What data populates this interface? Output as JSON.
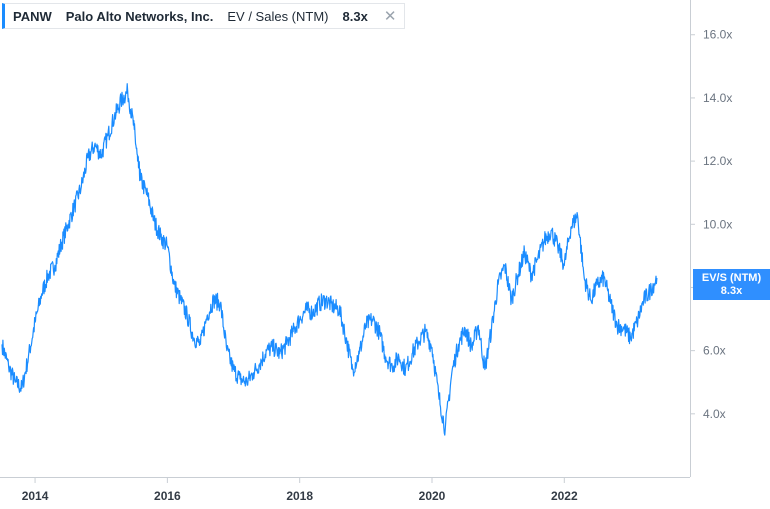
{
  "legend": {
    "ticker": "PANW",
    "company": "Palo Alto Networks, Inc.",
    "metric": "EV / Sales (NTM)",
    "value": "8.3x",
    "close_icon": "close-icon"
  },
  "badge": {
    "label": "EV/S (NTM)",
    "value": "8.3x"
  },
  "colors": {
    "line": "#1a8cff",
    "badge": "#2f8fff",
    "axis": "#c9ced4"
  },
  "chart_data": {
    "type": "line",
    "series": [
      {
        "x": [
          2013.5,
          2013.6,
          2013.7,
          2013.8,
          2013.9,
          2014.0,
          2014.1,
          2014.2,
          2014.3,
          2014.4,
          2014.5,
          2014.6,
          2014.7,
          2014.8,
          2014.9,
          2015.0,
          2015.1,
          2015.2,
          2015.3,
          2015.4,
          2015.5,
          2015.55,
          2015.6,
          2015.7,
          2015.8,
          2015.9,
          2016.0,
          2016.1,
          2016.2,
          2016.3,
          2016.4,
          2016.5,
          2016.6,
          2016.7,
          2016.8,
          2016.9,
          2017.0,
          2017.1,
          2017.2,
          2017.3,
          2017.4,
          2017.5,
          2017.6,
          2017.7,
          2017.8,
          2017.9,
          2018.0,
          2018.1,
          2018.2,
          2018.3,
          2018.4,
          2018.5,
          2018.6,
          2018.7,
          2018.8,
          2018.9,
          2019.0,
          2019.1,
          2019.2,
          2019.3,
          2019.4,
          2019.5,
          2019.6,
          2019.7,
          2019.8,
          2019.9,
          2020.0,
          2020.1,
          2020.2,
          2020.3,
          2020.4,
          2020.5,
          2020.6,
          2020.7,
          2020.8,
          2020.9,
          2021.0,
          2021.1,
          2021.2,
          2021.3,
          2021.4,
          2021.5,
          2021.6,
          2021.7,
          2021.8,
          2021.9,
          2022.0,
          2022.1,
          2022.2,
          2022.3,
          2022.4,
          2022.5,
          2022.6,
          2022.7,
          2022.8,
          2022.9,
          2023.0,
          2023.1,
          2023.2,
          2023.3,
          2023.4
        ],
        "y": [
          6.2,
          5.5,
          5.0,
          4.8,
          5.8,
          6.9,
          7.8,
          8.4,
          8.7,
          9.4,
          10.0,
          10.6,
          11.2,
          12.1,
          12.5,
          12.2,
          12.8,
          13.4,
          13.9,
          14.2,
          13.0,
          12.0,
          11.4,
          10.9,
          10.1,
          9.6,
          9.3,
          8.1,
          7.6,
          7.1,
          6.4,
          6.2,
          7.1,
          7.6,
          7.5,
          6.0,
          5.4,
          5.1,
          5.0,
          5.3,
          5.6,
          6.0,
          6.1,
          5.9,
          6.2,
          6.6,
          7.0,
          7.3,
          7.2,
          7.5,
          7.6,
          7.4,
          7.3,
          6.4,
          5.4,
          5.9,
          6.8,
          7.0,
          6.6,
          5.8,
          5.5,
          5.8,
          5.4,
          5.9,
          6.3,
          6.6,
          6.1,
          4.6,
          3.5,
          5.3,
          6.2,
          6.7,
          6.1,
          6.8,
          5.4,
          6.7,
          8.1,
          8.7,
          7.6,
          8.4,
          9.1,
          8.4,
          8.9,
          9.5,
          9.8,
          9.3,
          8.7,
          9.9,
          10.3,
          8.3,
          7.6,
          8.1,
          8.3,
          7.5,
          6.8,
          6.7,
          6.4,
          6.9,
          7.6,
          7.9,
          8.3
        ]
      }
    ],
    "x_ticks": [
      "2014",
      "2016",
      "2018",
      "2020",
      "2022"
    ],
    "y_ticks": [
      "4.0x",
      "6.0x",
      "8.0x",
      "10.0x",
      "12.0x",
      "14.0x",
      "16.0x"
    ],
    "xlim": [
      2013.47,
      2023.9
    ],
    "ylim": [
      2.0,
      17.1
    ],
    "y_axis_position": "right",
    "grid": false
  }
}
